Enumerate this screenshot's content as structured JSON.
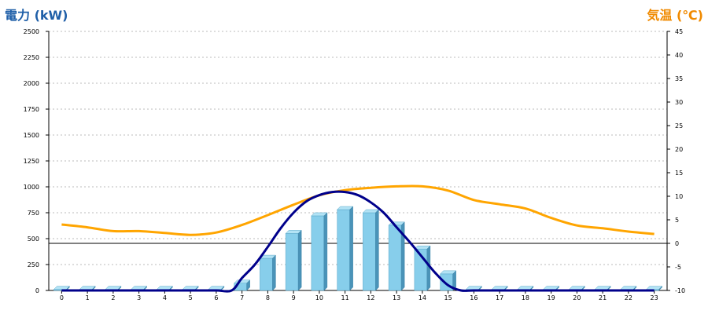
{
  "titles": {
    "left": "電力 (kW)",
    "right": "気温 (℃)"
  },
  "chart_data": {
    "type": "bar",
    "categories": [
      "0",
      "1",
      "2",
      "3",
      "4",
      "5",
      "6",
      "7",
      "8",
      "9",
      "10",
      "11",
      "12",
      "13",
      "14",
      "15",
      "16",
      "17",
      "18",
      "19",
      "20",
      "21",
      "22",
      "23"
    ],
    "series": [
      {
        "type": "bar",
        "axis": "left",
        "color": "#87ceeb",
        "values": [
          10,
          10,
          10,
          10,
          10,
          10,
          10,
          70,
          310,
          550,
          720,
          780,
          750,
          630,
          400,
          160,
          10,
          10,
          10,
          10,
          10,
          10,
          10,
          10
        ]
      },
      {
        "type": "line",
        "axis": "left",
        "color": "#00008b",
        "x": [
          0,
          1,
          2,
          3,
          4,
          5,
          6,
          6.6,
          7,
          7.5,
          8,
          8.5,
          9,
          9.5,
          10,
          10.5,
          11,
          11.5,
          12,
          12.5,
          13,
          13.5,
          14,
          14.5,
          15,
          15.5,
          16,
          17,
          18,
          19,
          20,
          21,
          22,
          23
        ],
        "values": [
          0,
          0,
          0,
          0,
          0,
          0,
          0,
          0,
          120,
          250,
          420,
          600,
          750,
          860,
          920,
          950,
          950,
          920,
          850,
          750,
          610,
          470,
          320,
          170,
          50,
          0,
          0,
          0,
          0,
          0,
          0,
          0,
          0,
          0
        ]
      },
      {
        "type": "line",
        "axis": "right",
        "color": "#ffa500",
        "values": [
          4,
          3.4,
          2.6,
          2.6,
          2.2,
          1.8,
          2.3,
          3.9,
          6,
          8.2,
          10.2,
          11.3,
          11.8,
          12.1,
          12.1,
          11.2,
          9.2,
          8.3,
          7.4,
          5.4,
          3.8,
          3.2,
          2.5,
          2.0
        ]
      }
    ],
    "y_left": {
      "ylim": [
        0,
        2500
      ],
      "ticks": [
        0,
        250,
        500,
        750,
        1000,
        1250,
        1500,
        1750,
        2000,
        2250,
        2500
      ]
    },
    "y_right": {
      "ylim": [
        -10,
        45
      ],
      "ticks": [
        -10,
        -5,
        0,
        5,
        10,
        15,
        20,
        25,
        30,
        35,
        40,
        45
      ]
    },
    "grid": true,
    "reference_line": {
      "axis": "right",
      "value": 0
    }
  }
}
